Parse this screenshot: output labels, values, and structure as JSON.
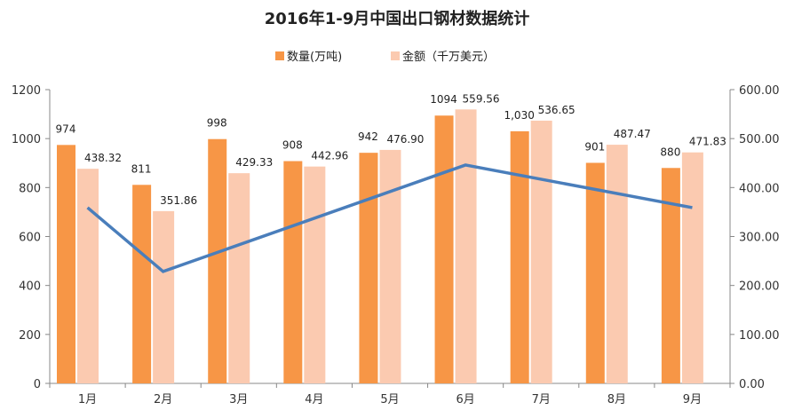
{
  "chart_data": {
    "type": "bar",
    "title": "2016年1-9月中国出口钢材数据统计",
    "categories": [
      "1月",
      "2月",
      "3月",
      "4月",
      "5月",
      "6月",
      "7月",
      "8月",
      "9月"
    ],
    "series": [
      {
        "name": "数量(万吨)",
        "axis": "left",
        "color": "#F79646",
        "values": [
          974,
          811,
          998,
          908,
          942,
          1094,
          1030,
          901,
          880
        ],
        "labels": [
          "974",
          "811",
          "998",
          "908",
          "942",
          "1094",
          "1,030",
          "901",
          "880"
        ]
      },
      {
        "name": "金额（千万美元）",
        "axis": "right",
        "color": "#FBCAB0",
        "values": [
          438.32,
          351.86,
          429.33,
          442.96,
          476.9,
          559.56,
          536.65,
          487.47,
          471.83
        ],
        "labels": [
          "438.32",
          "351.86",
          "429.33",
          "442.96",
          "476.90",
          "559.56",
          "536.65",
          "487.47",
          "471.83"
        ]
      }
    ],
    "trend_line": {
      "color": "#4A7EBB",
      "axis": "left",
      "points": [
        {
          "category": "1月",
          "value": 718
        },
        {
          "category": "2月",
          "value": 457
        },
        {
          "category": "6月",
          "value": 892
        },
        {
          "category": "9月",
          "value": 718
        }
      ]
    },
    "y_left": {
      "ylim": [
        0,
        1200
      ],
      "ticks": [
        "0",
        "200",
        "400",
        "600",
        "800",
        "1000",
        "1200"
      ]
    },
    "y_right": {
      "ylim": [
        0,
        600
      ],
      "ticks": [
        "0.00",
        "100.00",
        "200.00",
        "300.00",
        "400.00",
        "500.00",
        "600.00"
      ]
    },
    "legend_position": "top-center",
    "grid": false
  }
}
